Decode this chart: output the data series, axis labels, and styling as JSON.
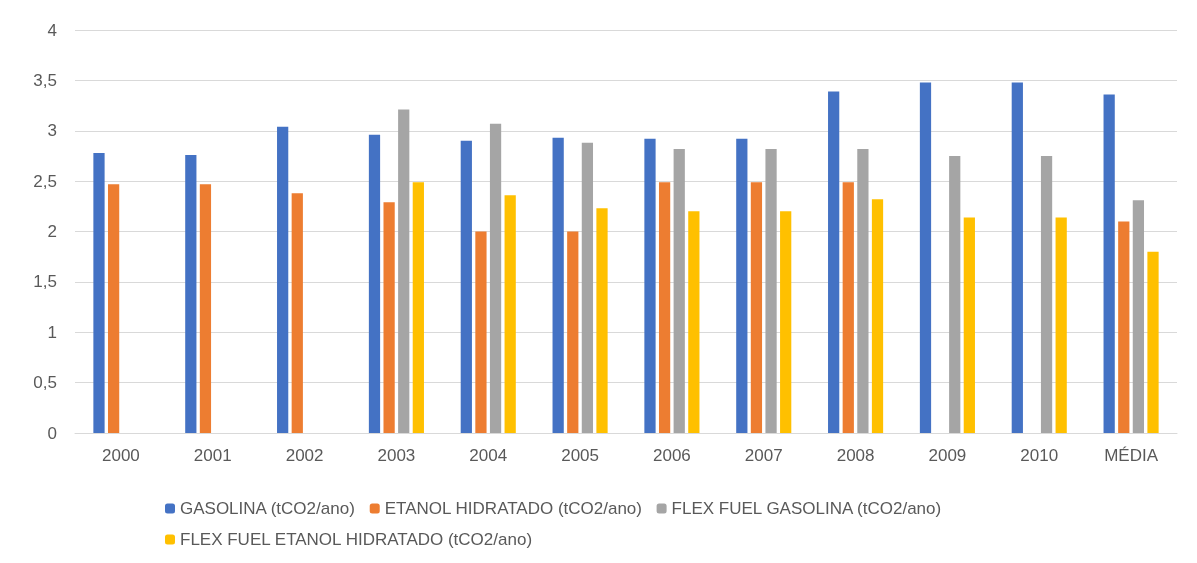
{
  "chart_data": {
    "type": "bar",
    "categories": [
      "2000",
      "2001",
      "2002",
      "2003",
      "2004",
      "2005",
      "2006",
      "2007",
      "2008",
      "2009",
      "2010",
      "MÉDIA"
    ],
    "series": [
      {
        "name": "GASOLINA (tCO2/ano)",
        "color": "#4472c4",
        "values": [
          2.78,
          2.76,
          3.04,
          2.96,
          2.9,
          2.93,
          2.92,
          2.92,
          3.39,
          3.48,
          3.48,
          3.36
        ]
      },
      {
        "name": "ETANOL HIDRATADO (tCO2/ano)",
        "color": "#ed7d31",
        "values": [
          2.47,
          2.47,
          2.38,
          2.29,
          2.0,
          2.0,
          2.49,
          2.49,
          2.49,
          null,
          null,
          2.1
        ]
      },
      {
        "name": "FLEX FUEL GASOLINA (tCO2/ano)",
        "color": "#a5a5a5",
        "values": [
          null,
          null,
          null,
          3.21,
          3.07,
          2.88,
          2.82,
          2.82,
          2.82,
          2.75,
          2.75,
          2.31
        ]
      },
      {
        "name": "FLEX FUEL ETANOL HIDRATADO (tCO2/ano)",
        "color": "#ffc000",
        "values": [
          null,
          null,
          null,
          2.49,
          2.36,
          2.23,
          2.2,
          2.2,
          2.32,
          2.14,
          2.14,
          1.8
        ]
      }
    ],
    "ylim": [
      0,
      4
    ],
    "yticks": [
      0,
      {
        "value": 0.5,
        "label": "0,5"
      },
      1,
      {
        "value": 1.5,
        "label": "1,5"
      },
      2,
      {
        "value": 2.5,
        "label": "2,5"
      },
      3,
      {
        "value": 3.5,
        "label": "3,5"
      },
      4
    ],
    "grid": "y",
    "legend": "bottom"
  }
}
